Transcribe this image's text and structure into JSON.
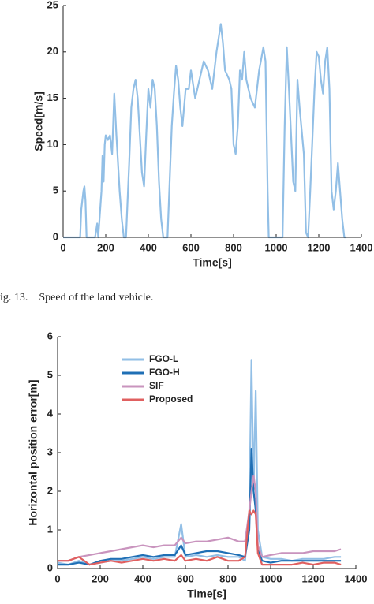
{
  "chart_data": [
    {
      "type": "line",
      "xlabel": "Time[s]",
      "ylabel": "Speed[m/s]",
      "x": [
        0,
        80,
        85,
        95,
        100,
        105,
        110,
        150,
        160,
        165,
        180,
        185,
        190,
        195,
        200,
        210,
        220,
        230,
        240,
        250,
        265,
        275,
        285,
        295,
        310,
        320,
        330,
        340,
        350,
        360,
        370,
        380,
        390,
        400,
        410,
        420,
        430,
        440,
        450,
        460,
        470,
        480,
        490,
        500,
        510,
        520,
        530,
        540,
        550,
        560,
        575,
        590,
        600,
        620,
        640,
        660,
        680,
        700,
        720,
        740,
        750,
        760,
        780,
        790,
        800,
        810,
        820,
        830,
        840,
        850,
        860,
        880,
        900,
        920,
        940,
        950,
        960,
        965,
        1030,
        1040,
        1050,
        1060,
        1070,
        1080,
        1090,
        1100,
        1110,
        1130,
        1140,
        1150,
        1160,
        1180,
        1190,
        1200,
        1210,
        1220,
        1230,
        1240,
        1250,
        1260,
        1270,
        1280,
        1290,
        1300,
        1310,
        1320,
        1330
      ],
      "values": [
        0,
        0,
        3,
        5,
        5.5,
        4,
        0,
        0,
        1.5,
        0,
        5,
        8.8,
        6,
        10,
        11,
        10.5,
        11,
        9,
        15.5,
        11,
        5,
        2,
        0,
        0,
        8,
        14,
        16,
        17,
        15,
        11,
        7,
        5.5,
        11,
        16,
        14,
        17,
        16,
        12,
        6,
        2,
        0,
        0,
        0,
        6,
        12,
        15.5,
        18.5,
        17,
        14,
        12,
        16,
        16,
        18,
        15,
        17,
        19,
        18,
        16,
        20,
        23,
        21,
        18,
        17,
        16,
        10,
        9,
        12,
        18,
        17,
        20,
        17,
        15,
        14,
        18,
        20.5,
        19,
        5,
        0,
        0,
        12,
        20.5,
        16,
        11,
        6,
        5,
        17,
        14,
        9,
        0.5,
        0,
        5,
        16,
        20,
        19.5,
        17,
        15.5,
        19,
        20.5,
        16,
        5,
        3,
        5,
        8,
        5,
        2,
        0,
        0
      ],
      "color": "#92bfe6",
      "xlim": [
        0,
        1400
      ],
      "xticks": [
        0,
        200,
        400,
        600,
        800,
        1000,
        1200,
        1400
      ],
      "ylim": [
        0,
        25
      ],
      "yticks": [
        0,
        5,
        10,
        15,
        20,
        25
      ]
    },
    {
      "type": "line",
      "xlabel": "Time[s]",
      "ylabel": "Horizontal position error[m]",
      "legend": "upper left",
      "x": [
        0,
        50,
        100,
        150,
        200,
        250,
        300,
        350,
        400,
        450,
        500,
        550,
        580,
        600,
        650,
        700,
        750,
        800,
        850,
        880,
        900,
        910,
        920,
        930,
        940,
        960,
        1000,
        1050,
        1100,
        1150,
        1200,
        1250,
        1300,
        1330
      ],
      "series": [
        {
          "name": "FGO-L",
          "color": "#92bfe6",
          "values": [
            0.15,
            0.1,
            0.2,
            0.1,
            0.15,
            0.2,
            0.2,
            0.25,
            0.3,
            0.25,
            0.3,
            0.3,
            1.15,
            0.3,
            0.35,
            0.3,
            0.35,
            0.3,
            0.3,
            0.2,
            1.5,
            5.4,
            2,
            4.6,
            1,
            0.3,
            0.25,
            0.25,
            0.2,
            0.25,
            0.25,
            0.25,
            0.3,
            0.3
          ]
        },
        {
          "name": "FGO-H",
          "color": "#1f6fb5",
          "values": [
            0.1,
            0.1,
            0.15,
            0.1,
            0.2,
            0.25,
            0.25,
            0.3,
            0.35,
            0.3,
            0.35,
            0.35,
            0.6,
            0.35,
            0.4,
            0.45,
            0.45,
            0.4,
            0.35,
            0.3,
            1,
            3.1,
            2,
            1.5,
            0.5,
            0.2,
            0.15,
            0.2,
            0.2,
            0.2,
            0.2,
            0.2,
            0.2,
            0.2
          ]
        },
        {
          "name": "SIF",
          "color": "#c994be",
          "values": [
            0.2,
            0.2,
            0.3,
            0.35,
            0.4,
            0.45,
            0.5,
            0.55,
            0.6,
            0.55,
            0.6,
            0.6,
            0.8,
            0.65,
            0.7,
            0.7,
            0.75,
            0.8,
            0.7,
            0.7,
            1.5,
            2,
            2.4,
            2,
            0.6,
            0.3,
            0.35,
            0.4,
            0.4,
            0.4,
            0.45,
            0.45,
            0.45,
            0.5
          ]
        },
        {
          "name": "Proposed",
          "color": "#e06060",
          "values": [
            0.2,
            0.2,
            0.3,
            0.1,
            0.15,
            0.2,
            0.15,
            0.2,
            0.25,
            0.2,
            0.25,
            0.2,
            0.35,
            0.2,
            0.25,
            0.2,
            0.3,
            0.2,
            0.2,
            0.3,
            1.5,
            1.4,
            1.5,
            1.4,
            0.4,
            0.1,
            0.1,
            0.1,
            0.1,
            0.15,
            0.1,
            0.15,
            0.15,
            0.1
          ]
        }
      ],
      "xlim": [
        0,
        1400
      ],
      "xticks": [
        0,
        200,
        400,
        600,
        800,
        1000,
        1200,
        1400
      ],
      "ylim": [
        0,
        6
      ],
      "yticks": [
        0,
        1,
        2,
        3,
        4,
        5,
        6
      ]
    }
  ],
  "caption": "ig. 13.    Speed of the land vehicle."
}
